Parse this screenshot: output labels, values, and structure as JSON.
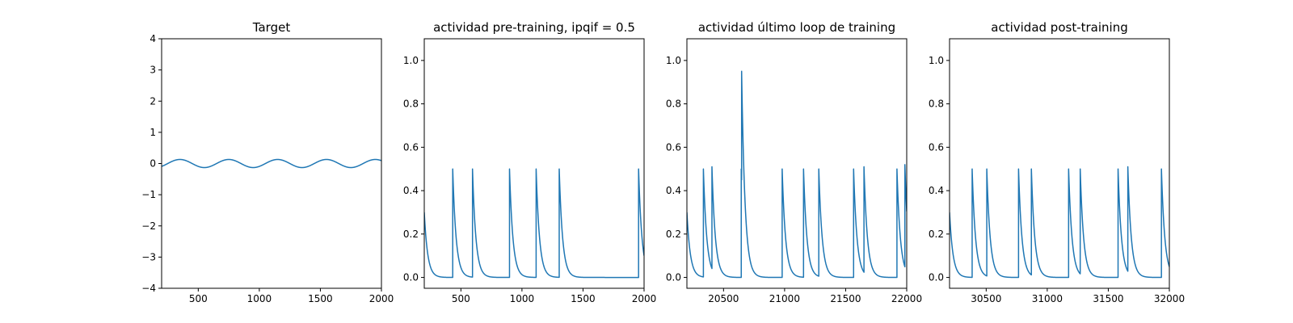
{
  "chart_data": [
    {
      "type": "line",
      "title": "Target",
      "xlim": [
        200,
        2000
      ],
      "ylim": [
        -4,
        4
      ],
      "xticks": [
        500,
        1000,
        1500,
        2000
      ],
      "xtick_labels": [
        "500",
        "1000",
        "1500",
        "2000"
      ],
      "yticks": [
        -4,
        -3,
        -2,
        -1,
        0,
        1,
        2,
        3,
        4
      ],
      "ytick_labels": [
        "−4",
        "−3",
        "−2",
        "−1",
        "0",
        "1",
        "2",
        "3",
        "4"
      ],
      "series": [
        {
          "kind": "sine",
          "amplitude": 0.13,
          "period": 400,
          "peak_at": 350,
          "x_range": [
            200,
            2000
          ]
        }
      ],
      "color": "#1f77b4"
    },
    {
      "type": "line",
      "title": "actividad pre-training, ipqif = 0.5",
      "xlim": [
        200,
        2000
      ],
      "ylim": [
        -0.05,
        1.1
      ],
      "xticks": [
        500,
        1000,
        1500,
        2000
      ],
      "xtick_labels": [
        "500",
        "1000",
        "1500",
        "2000"
      ],
      "yticks": [
        0.0,
        0.2,
        0.4,
        0.6,
        0.8,
        1.0
      ],
      "ytick_labels": [
        "0.0",
        "0.2",
        "0.4",
        "0.6",
        "0.8",
        "1.0"
      ],
      "series": [
        {
          "kind": "spikes",
          "start_value": 0.3,
          "baseline": 0,
          "decay": 28,
          "x_range": [
            200,
            2000
          ],
          "spikes": [
            [
              433,
              0.5
            ],
            [
              595,
              0.5
            ],
            [
              898,
              0.5
            ],
            [
              1116,
              0.5
            ],
            [
              1305,
              0.5
            ],
            [
              1955,
              0.5
            ]
          ]
        }
      ],
      "color": "#1f77b4"
    },
    {
      "type": "line",
      "title": "actividad último loop de training",
      "xlim": [
        20200,
        22000
      ],
      "ylim": [
        -0.05,
        1.1
      ],
      "xticks": [
        20500,
        21000,
        21500,
        22000
      ],
      "xtick_labels": [
        "20500",
        "21000",
        "21500",
        "22000"
      ],
      "yticks": [
        0.0,
        0.2,
        0.4,
        0.6,
        0.8,
        1.0
      ],
      "ytick_labels": [
        "0.0",
        "0.2",
        "0.4",
        "0.6",
        "0.8",
        "1.0"
      ],
      "series": [
        {
          "kind": "spikes",
          "start_value": 0.3,
          "baseline": 0,
          "decay": 28,
          "x_range": [
            20200,
            22000
          ],
          "spikes": [
            [
              20335,
              0.5
            ],
            [
              20405,
              0.51
            ],
            [
              20645,
              0.5
            ],
            [
              20648,
              0.95
            ],
            [
              20980,
              0.5
            ],
            [
              21155,
              0.5
            ],
            [
              21280,
              0.5
            ],
            [
              21565,
              0.5
            ],
            [
              21650,
              0.51
            ],
            [
              21920,
              0.5
            ],
            [
              21985,
              0.52
            ]
          ]
        }
      ],
      "color": "#1f77b4"
    },
    {
      "type": "line",
      "title": "actividad post-training",
      "xlim": [
        30200,
        32000
      ],
      "ylim": [
        -0.05,
        1.1
      ],
      "xticks": [
        30500,
        31000,
        31500,
        32000
      ],
      "xtick_labels": [
        "30500",
        "31000",
        "31500",
        "32000"
      ],
      "yticks": [
        0.0,
        0.2,
        0.4,
        0.6,
        0.8,
        1.0
      ],
      "ytick_labels": [
        "0.0",
        "0.2",
        "0.4",
        "0.6",
        "0.8",
        "1.0"
      ],
      "series": [
        {
          "kind": "spikes",
          "start_value": 0.3,
          "baseline": 0,
          "decay": 28,
          "x_range": [
            30200,
            32000
          ],
          "spikes": [
            [
              30385,
              0.5
            ],
            [
              30505,
              0.5
            ],
            [
              30765,
              0.5
            ],
            [
              30870,
              0.5
            ],
            [
              31175,
              0.5
            ],
            [
              31270,
              0.5
            ],
            [
              31580,
              0.5
            ],
            [
              31660,
              0.51
            ],
            [
              31935,
              0.5
            ]
          ]
        }
      ],
      "color": "#1f77b4"
    }
  ]
}
